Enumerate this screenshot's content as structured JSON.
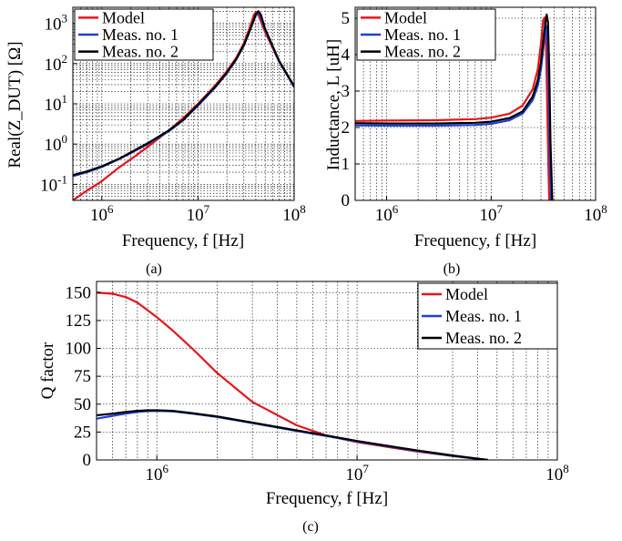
{
  "chart_data": [
    {
      "type": "line",
      "caption": "(a)",
      "xlabel": "Frequency, f [Hz]",
      "ylabel": "Real(Z_DUT) [Ω]",
      "x_scale": "log",
      "y_scale": "log",
      "xlim": [
        500000,
        100000000
      ],
      "ylim": [
        0.04,
        2500
      ],
      "x_ticks": [
        1000000,
        10000000,
        100000000
      ],
      "x_tick_labels": [
        {
          "base": "10",
          "exp": "6"
        },
        {
          "base": "10",
          "exp": "7"
        },
        {
          "base": "10",
          "exp": "8"
        }
      ],
      "y_ticks": [
        0.1,
        1,
        10,
        100,
        1000
      ],
      "y_tick_labels": [
        {
          "base": "10",
          "exp": "-1"
        },
        {
          "base": "10",
          "exp": "0"
        },
        {
          "base": "10",
          "exp": "1"
        },
        {
          "base": "10",
          "exp": "2"
        },
        {
          "base": "10",
          "exp": "3"
        }
      ],
      "grid": true,
      "legend_position": "top-left",
      "series": [
        {
          "name": "Model",
          "color": "#e8151b",
          "x": [
            500000,
            700000,
            1000000,
            1500000,
            2000000,
            3000000,
            5000000,
            7000000,
            10000000,
            15000000,
            20000000,
            25000000,
            30000000,
            35000000,
            38000000,
            40000000,
            43000000,
            50000000,
            70000000,
            100000000
          ],
          "y": [
            0.04,
            0.07,
            0.12,
            0.26,
            0.42,
            0.85,
            2.2,
            4.4,
            10,
            28,
            65,
            140,
            320,
            850,
            1600,
            1900,
            1500,
            600,
            110,
            28
          ]
        },
        {
          "name": "Meas. no. 1",
          "color": "#1e3fd8",
          "x": [
            500000,
            700000,
            1000000,
            1500000,
            2000000,
            3000000,
            5000000,
            7000000,
            10000000,
            15000000,
            20000000,
            25000000,
            30000000,
            35000000,
            40000000,
            42000000,
            44000000,
            50000000,
            70000000,
            100000000
          ],
          "y": [
            0.16,
            0.2,
            0.27,
            0.42,
            0.6,
            1.0,
            2.1,
            3.9,
            9,
            25,
            58,
            125,
            280,
            700,
            1600,
            1900,
            1600,
            700,
            110,
            26
          ]
        },
        {
          "name": "Meas. no. 2",
          "color": "#000000",
          "x": [
            500000,
            700000,
            1000000,
            1500000,
            2000000,
            3000000,
            5000000,
            7000000,
            10000000,
            15000000,
            20000000,
            25000000,
            30000000,
            35000000,
            40000000,
            42500000,
            45000000,
            50000000,
            70000000,
            100000000
          ],
          "y": [
            0.17,
            0.21,
            0.28,
            0.43,
            0.62,
            1.05,
            2.2,
            4.0,
            9.5,
            26,
            60,
            130,
            290,
            720,
            1700,
            2000,
            1650,
            720,
            115,
            27
          ]
        }
      ]
    },
    {
      "type": "line",
      "caption": "(b)",
      "xlabel": "Frequency, f [Hz]",
      "ylabel": "Inductance, L [uH]",
      "x_scale": "log",
      "y_scale": "linear",
      "xlim": [
        500000,
        100000000
      ],
      "ylim": [
        0,
        5.3
      ],
      "x_ticks": [
        1000000,
        10000000,
        100000000
      ],
      "x_tick_labels": [
        {
          "base": "10",
          "exp": "6"
        },
        {
          "base": "10",
          "exp": "7"
        },
        {
          "base": "10",
          "exp": "8"
        }
      ],
      "y_ticks": [
        0,
        1,
        2,
        3,
        4,
        5
      ],
      "y_tick_labels": [
        "0",
        "1",
        "2",
        "3",
        "4",
        "5"
      ],
      "grid": true,
      "legend_position": "top-left",
      "series": [
        {
          "name": "Model",
          "color": "#e8151b",
          "x": [
            500000,
            1000000,
            3000000,
            7000000,
            10000000,
            15000000,
            20000000,
            25000000,
            28000000,
            30000000,
            31500000,
            32500000,
            33500000,
            34500000,
            35500000,
            36000000
          ],
          "y": [
            2.18,
            2.19,
            2.2,
            2.23,
            2.27,
            2.38,
            2.6,
            3.05,
            3.6,
            4.3,
            4.95,
            5.02,
            4.3,
            2.5,
            0.7,
            0
          ]
        },
        {
          "name": "Meas. no. 1",
          "color": "#1e3fd8",
          "x": [
            500000,
            1000000,
            3000000,
            7000000,
            10000000,
            15000000,
            20000000,
            25000000,
            28000000,
            30000000,
            32000000,
            33500000,
            34500000,
            35500000,
            36500000,
            37500000
          ],
          "y": [
            2.06,
            2.05,
            2.05,
            2.07,
            2.1,
            2.2,
            2.38,
            2.75,
            3.15,
            3.6,
            4.3,
            4.8,
            4.6,
            3.2,
            1.2,
            0
          ]
        },
        {
          "name": "Meas. no. 2",
          "color": "#000000",
          "x": [
            500000,
            1000000,
            3000000,
            7000000,
            10000000,
            15000000,
            20000000,
            25000000,
            28000000,
            30000000,
            32000000,
            34000000,
            35000000,
            36000000,
            37000000,
            38500000
          ],
          "y": [
            2.12,
            2.11,
            2.11,
            2.13,
            2.16,
            2.26,
            2.44,
            2.85,
            3.3,
            3.8,
            4.55,
            5.1,
            4.9,
            3.6,
            1.6,
            0
          ]
        }
      ]
    },
    {
      "type": "line",
      "caption": "(c)",
      "xlabel": "Frequency, f [Hz]",
      "ylabel": "Q factor",
      "x_scale": "log",
      "y_scale": "linear",
      "xlim": [
        500000,
        100000000
      ],
      "ylim": [
        0,
        160
      ],
      "x_ticks": [
        1000000,
        10000000,
        100000000
      ],
      "x_tick_labels": [
        {
          "base": "10",
          "exp": "6"
        },
        {
          "base": "10",
          "exp": "7"
        },
        {
          "base": "10",
          "exp": "8"
        }
      ],
      "y_ticks": [
        0,
        25,
        50,
        75,
        100,
        125,
        150
      ],
      "y_tick_labels": [
        "0",
        "25",
        "50",
        "75",
        "100",
        "125",
        "150"
      ],
      "grid": true,
      "legend_position": "top-right",
      "series": [
        {
          "name": "Model",
          "color": "#e8151b",
          "x": [
            500000,
            600000,
            700000,
            800000,
            1000000,
            1200000,
            1500000,
            2000000,
            3000000,
            5000000,
            7000000,
            10000000,
            15000000,
            20000000,
            30000000,
            40000000,
            45000000
          ],
          "y": [
            150,
            149,
            146,
            141,
            128,
            116,
            100,
            78,
            52,
            31,
            22,
            16,
            11,
            7.5,
            3.5,
            1,
            0
          ]
        },
        {
          "name": "Meas. no. 1",
          "color": "#1e3fd8",
          "x": [
            500000,
            600000,
            700000,
            800000,
            900000,
            1000000,
            1200000,
            1500000,
            2000000,
            3000000,
            5000000,
            7000000,
            10000000,
            15000000,
            20000000,
            30000000,
            40000000,
            45000000
          ],
          "y": [
            37,
            39.5,
            41.5,
            43,
            43.8,
            44,
            43.5,
            41.5,
            38.5,
            33,
            26,
            21.5,
            16.5,
            11.5,
            8,
            3.5,
            1,
            0
          ]
        },
        {
          "name": "Meas. no. 2",
          "color": "#000000",
          "x": [
            500000,
            600000,
            700000,
            800000,
            900000,
            1000000,
            1200000,
            1500000,
            2000000,
            3000000,
            5000000,
            7000000,
            10000000,
            15000000,
            20000000,
            30000000,
            40000000,
            45000000
          ],
          "y": [
            40,
            41.5,
            43,
            44,
            44.5,
            44.5,
            44,
            42,
            39,
            33.5,
            26.5,
            22,
            17,
            12,
            8.5,
            4,
            1.2,
            0
          ]
        }
      ]
    }
  ]
}
